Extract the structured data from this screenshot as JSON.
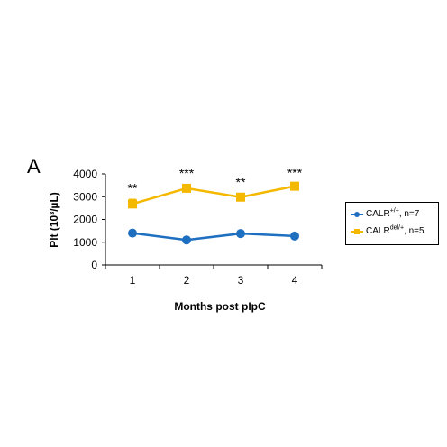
{
  "panel_label": "A",
  "chart_data": {
    "type": "line",
    "title": "",
    "xlabel": "Months post pIpC",
    "ylabel": "Plt (10³/µL)",
    "categories": [
      "1",
      "2",
      "3",
      "4"
    ],
    "ylim": [
      0,
      4000
    ],
    "yticks": [
      0,
      1000,
      2000,
      3000,
      4000
    ],
    "yticklabels": [
      "0",
      "1000",
      "2000",
      "3000",
      "4000"
    ],
    "grid": false,
    "legend_position": "right",
    "series": [
      {
        "name": "CALR+/+, n=7",
        "legend_base": "CALR",
        "legend_sup": "+/+",
        "legend_rest": ", n=7",
        "color": "#1f6fc1",
        "marker": "circle",
        "values": [
          1400,
          1100,
          1380,
          1270
        ],
        "errors": [
          60,
          70,
          60,
          50
        ]
      },
      {
        "name": "CALRdel/+, n=5",
        "legend_base": "CALR",
        "legend_sup": "del/+",
        "legend_rest": ", n=5",
        "color": "#f5b800",
        "marker": "square",
        "values": [
          2680,
          3370,
          2980,
          3460
        ],
        "errors": [
          200,
          150,
          150,
          80
        ]
      }
    ],
    "significance": [
      "**",
      "***",
      "**",
      "***"
    ]
  }
}
